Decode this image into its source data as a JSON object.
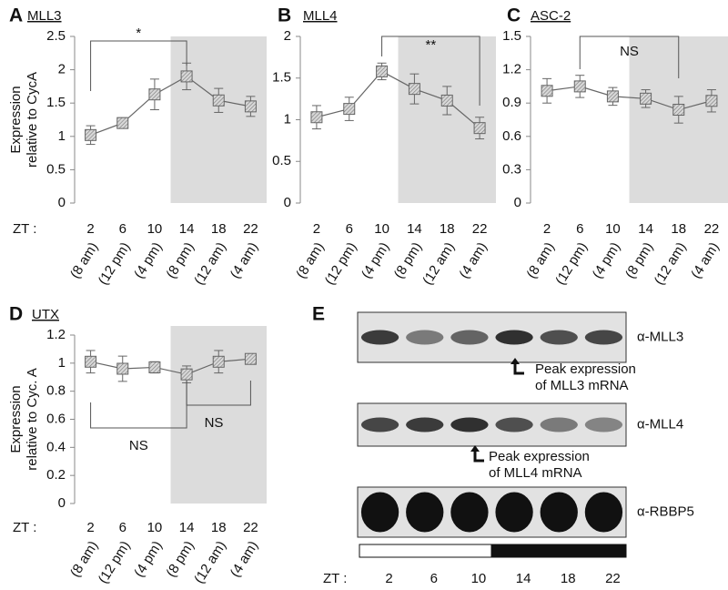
{
  "chart_data": [
    {
      "type": "line",
      "letter": "A",
      "title": "MLL3",
      "ylabel": [
        "Expression",
        "relative to CycA"
      ],
      "zt_label": "ZT :",
      "categories": [
        "2",
        "6",
        "10",
        "14",
        "18",
        "22"
      ],
      "time_labels": [
        "(8 am)",
        "(12 pm)",
        "(4 pm)",
        "(8 pm)",
        "(12 am)",
        "(4 am)"
      ],
      "values": [
        1.02,
        1.2,
        1.63,
        1.9,
        1.54,
        1.45
      ],
      "errors": [
        0.14,
        0.08,
        0.23,
        0.2,
        0.18,
        0.15
      ],
      "ylim": [
        0,
        2.5
      ],
      "yticks": [
        0,
        0.5,
        1,
        1.5,
        2,
        2.5
      ],
      "annotations": [
        "*"
      ],
      "color": "#666666"
    },
    {
      "type": "line",
      "letter": "B",
      "title": "MLL4",
      "categories": [
        "2",
        "6",
        "10",
        "14",
        "18",
        "22"
      ],
      "time_labels": [
        "(8 am)",
        "(12 pm)",
        "(4 pm)",
        "(8 pm)",
        "(12 am)",
        "(4 am)"
      ],
      "values": [
        1.03,
        1.13,
        1.58,
        1.37,
        1.23,
        0.9
      ],
      "errors": [
        0.14,
        0.14,
        0.1,
        0.18,
        0.17,
        0.13
      ],
      "ylim": [
        0,
        2
      ],
      "yticks": [
        0,
        0.5,
        1,
        1.5,
        2
      ],
      "annotations": [
        "**"
      ],
      "color": "#666666"
    },
    {
      "type": "line",
      "letter": "C",
      "title": "ASC-2",
      "categories": [
        "2",
        "6",
        "10",
        "14",
        "18",
        "22"
      ],
      "time_labels": [
        "(8 am)",
        "(12 pm)",
        "(4 pm)",
        "(8 pm)",
        "(12 am)",
        "(4 am)"
      ],
      "values": [
        1.01,
        1.05,
        0.96,
        0.94,
        0.84,
        0.92
      ],
      "errors": [
        0.11,
        0.1,
        0.08,
        0.08,
        0.12,
        0.1
      ],
      "ylim": [
        0,
        1.5
      ],
      "yticks": [
        0,
        0.3,
        0.6,
        0.9,
        1.2,
        1.5
      ],
      "annotations": [
        "NS"
      ],
      "color": "#666666"
    },
    {
      "type": "line",
      "letter": "D",
      "title": "UTX",
      "ylabel": [
        "Expression",
        "relative to Cyc. A"
      ],
      "zt_label": "ZT :",
      "categories": [
        "2",
        "6",
        "10",
        "14",
        "18",
        "22"
      ],
      "time_labels": [
        "(8 am)",
        "(12 pm)",
        "(4 pm)",
        "(8 pm)",
        "(12 am)",
        "(4 am)"
      ],
      "values": [
        1.01,
        0.96,
        0.97,
        0.92,
        1.01,
        1.03
      ],
      "errors": [
        0.08,
        0.09,
        0.04,
        0.06,
        0.08,
        0.02
      ],
      "ylim": [
        0,
        1.2
      ],
      "yticks": [
        0,
        0.2,
        0.4,
        0.6,
        0.8,
        1,
        1.2
      ],
      "annotations": [
        "NS",
        "NS"
      ],
      "color": "#666666"
    }
  ],
  "blot": {
    "letter": "E",
    "antibodies": [
      "α-MLL3",
      "α-MLL4",
      "α-RBBP5"
    ],
    "notes": [
      [
        "Peak expression",
        "of MLL3 mRNA"
      ],
      [
        "Peak expression",
        "of MLL4 mRNA"
      ]
    ],
    "zt_label": "ZT :",
    "zt": [
      "2",
      "6",
      "10",
      "14",
      "18",
      "22"
    ]
  }
}
